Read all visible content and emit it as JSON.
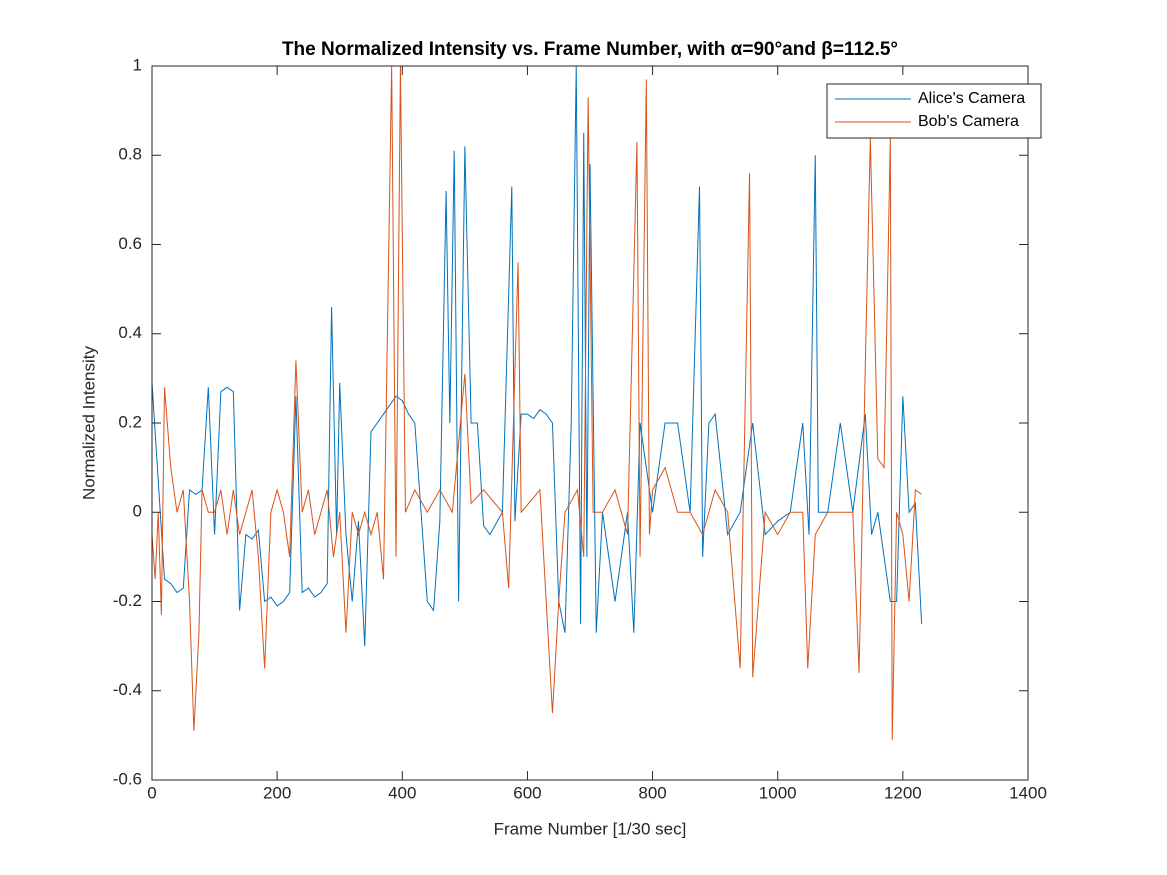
{
  "chart_data": {
    "type": "line",
    "title": "The Normalized Intensity vs. Frame Number, with α=90°and β=112.5°",
    "x_label": "Frame Number [1/30 sec]",
    "y_label": "Normalized Intensity",
    "xlim": [
      0,
      1400
    ],
    "xticks": [
      0,
      200,
      400,
      600,
      800,
      1000,
      1200,
      1400
    ],
    "ylim": [
      -0.6,
      1
    ],
    "yticks": [
      -0.6,
      -0.4,
      -0.2,
      0,
      0.2,
      0.4,
      0.6,
      0.8,
      1
    ],
    "grid": false,
    "legend": "upper-right",
    "series": [
      {
        "name": "Alice's Camera",
        "color": "#0072bd",
        "x": [
          0,
          10,
          20,
          30,
          40,
          50,
          60,
          70,
          80,
          90,
          100,
          110,
          120,
          130,
          140,
          150,
          160,
          170,
          180,
          190,
          200,
          210,
          220,
          230,
          240,
          250,
          260,
          270,
          280,
          287,
          295,
          300,
          310,
          320,
          330,
          340,
          350,
          360,
          370,
          380,
          390,
          400,
          410,
          420,
          430,
          440,
          450,
          460,
          470,
          476,
          483,
          490,
          500,
          510,
          520,
          530,
          540,
          560,
          575,
          580,
          590,
          600,
          610,
          620,
          630,
          640,
          650,
          660,
          670,
          678,
          685,
          690,
          695,
          700,
          710,
          720,
          740,
          760,
          770,
          780,
          800,
          820,
          840,
          860,
          875,
          880,
          890,
          900,
          920,
          940,
          960,
          980,
          1000,
          1020,
          1040,
          1050,
          1060,
          1065,
          1080,
          1100,
          1120,
          1140,
          1150,
          1160,
          1180,
          1190,
          1200,
          1210,
          1220,
          1230
        ],
        "values": [
          0.29,
          0.07,
          -0.15,
          -0.16,
          -0.18,
          -0.17,
          0.05,
          0.04,
          0.05,
          0.28,
          -0.05,
          0.27,
          0.28,
          0.27,
          -0.22,
          -0.05,
          -0.06,
          -0.04,
          -0.2,
          -0.19,
          -0.21,
          -0.2,
          -0.18,
          0.26,
          -0.18,
          -0.17,
          -0.19,
          -0.18,
          -0.16,
          0.46,
          -0.05,
          0.29,
          -0.05,
          -0.2,
          -0.02,
          -0.3,
          0.18,
          0.2,
          0.22,
          0.24,
          0.26,
          0.25,
          0.22,
          0.2,
          0.0,
          -0.2,
          -0.22,
          -0.02,
          0.72,
          0.2,
          0.81,
          -0.2,
          0.82,
          0.2,
          0.2,
          -0.03,
          -0.05,
          0.0,
          0.73,
          -0.02,
          0.22,
          0.22,
          0.21,
          0.23,
          0.22,
          0.2,
          -0.2,
          -0.27,
          0.2,
          1.0,
          -0.25,
          0.85,
          -0.1,
          0.78,
          -0.27,
          0.0,
          -0.2,
          0.0,
          -0.27,
          0.2,
          0.0,
          0.2,
          0.2,
          0.0,
          0.73,
          -0.1,
          0.2,
          0.22,
          -0.05,
          0.0,
          0.2,
          -0.05,
          -0.02,
          0.0,
          0.2,
          -0.05,
          0.8,
          0.0,
          0.0,
          0.2,
          0.0,
          0.22,
          -0.05,
          0.0,
          -0.2,
          -0.2,
          0.26,
          0.0,
          0.02,
          -0.25
        ]
      },
      {
        "name": "Bob's Camera",
        "color": "#d95319",
        "x": [
          0,
          5,
          10,
          15,
          20,
          30,
          40,
          50,
          60,
          67,
          75,
          80,
          90,
          100,
          110,
          120,
          130,
          140,
          150,
          160,
          170,
          180,
          190,
          200,
          210,
          220,
          230,
          240,
          250,
          260,
          270,
          280,
          290,
          300,
          310,
          320,
          330,
          340,
          350,
          360,
          370,
          383,
          390,
          397,
          405,
          420,
          440,
          460,
          480,
          500,
          510,
          530,
          560,
          570,
          585,
          590,
          620,
          640,
          650,
          660,
          680,
          690,
          697,
          705,
          720,
          740,
          760,
          775,
          780,
          790,
          795,
          800,
          820,
          840,
          860,
          880,
          900,
          920,
          940,
          955,
          960,
          980,
          1000,
          1020,
          1040,
          1048,
          1060,
          1080,
          1100,
          1120,
          1130,
          1140,
          1148,
          1160,
          1170,
          1180,
          1183,
          1190,
          1200,
          1210,
          1220,
          1230
        ],
        "values": [
          -0.05,
          -0.15,
          0.0,
          -0.23,
          0.28,
          0.1,
          0.0,
          0.05,
          -0.2,
          -0.49,
          -0.27,
          0.05,
          0.0,
          0.0,
          0.05,
          -0.05,
          0.05,
          -0.05,
          0.0,
          0.05,
          -0.1,
          -0.35,
          0.0,
          0.05,
          0.0,
          -0.1,
          0.34,
          0.0,
          0.05,
          -0.05,
          0.0,
          0.05,
          -0.1,
          0.0,
          -0.27,
          0.0,
          -0.05,
          0.0,
          -0.05,
          0.0,
          -0.15,
          1.0,
          -0.1,
          1.0,
          0.0,
          0.05,
          0.0,
          0.05,
          0.0,
          0.31,
          0.02,
          0.05,
          0.0,
          -0.17,
          0.56,
          0.0,
          0.05,
          -0.45,
          -0.2,
          0.0,
          0.05,
          -0.1,
          0.93,
          0.0,
          0.0,
          0.05,
          -0.05,
          0.83,
          -0.1,
          0.97,
          -0.05,
          0.05,
          0.1,
          0.0,
          0.0,
          -0.05,
          0.05,
          0.0,
          -0.35,
          0.76,
          -0.37,
          0.0,
          -0.05,
          0.0,
          0.0,
          -0.35,
          -0.05,
          0.0,
          0.0,
          0.0,
          -0.36,
          0.33,
          0.84,
          0.12,
          0.1,
          0.84,
          -0.51,
          0.0,
          -0.05,
          -0.2,
          0.05,
          0.04
        ]
      }
    ]
  }
}
